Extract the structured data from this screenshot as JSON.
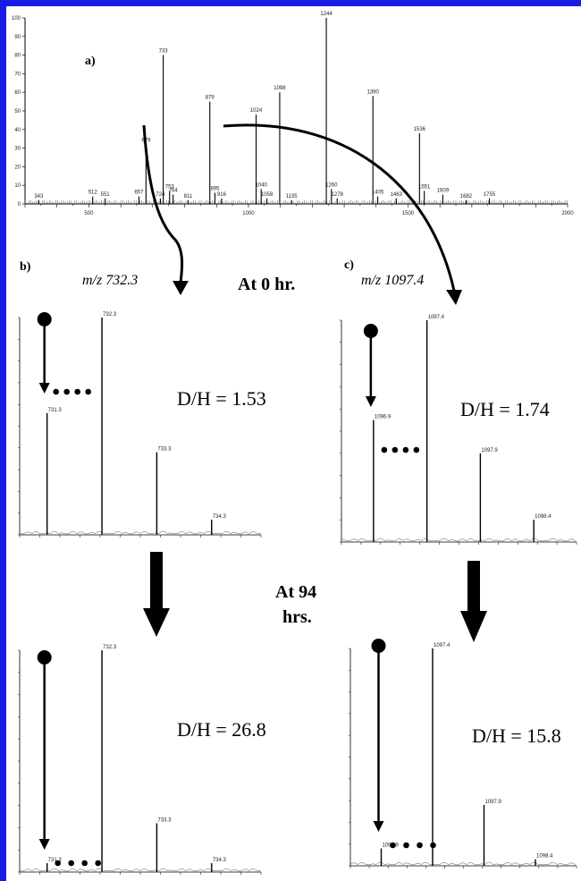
{
  "colors": {
    "frame": "#1a1ae6",
    "ink": "#000000"
  },
  "annotations": {
    "label_a": "a)",
    "label_b": "b)",
    "label_c": "c)",
    "mz_b": "m/z 732.3",
    "mz_c": "m/z 1097.4",
    "time_0": "At 0 hr.",
    "time_94_line1": "At 94",
    "time_94_line2": "hrs."
  },
  "chart_data": [
    {
      "id": "a",
      "type": "bar",
      "xlim": [
        300,
        2000
      ],
      "ylim": [
        0,
        100
      ],
      "xticks": [
        500,
        1000,
        1500,
        2000
      ],
      "yticks": [
        0,
        10,
        20,
        30,
        40,
        50,
        60,
        70,
        80,
        90,
        100
      ],
      "peaks": [
        {
          "x": 343,
          "y": 2,
          "label": "343"
        },
        {
          "x": 512,
          "y": 4,
          "label": "512"
        },
        {
          "x": 551,
          "y": 3,
          "label": "551"
        },
        {
          "x": 657,
          "y": 4,
          "label": "657"
        },
        {
          "x": 679,
          "y": 32,
          "label": "679"
        },
        {
          "x": 724,
          "y": 3,
          "label": "724"
        },
        {
          "x": 733,
          "y": 80,
          "label": "733"
        },
        {
          "x": 753,
          "y": 7,
          "label": "753"
        },
        {
          "x": 764,
          "y": 5,
          "label": "764"
        },
        {
          "x": 811,
          "y": 2,
          "label": "811"
        },
        {
          "x": 879,
          "y": 55,
          "label": "879"
        },
        {
          "x": 895,
          "y": 6,
          "label": "895"
        },
        {
          "x": 916,
          "y": 3,
          "label": "916"
        },
        {
          "x": 1024,
          "y": 48,
          "label": "1024"
        },
        {
          "x": 1040,
          "y": 8,
          "label": "1040"
        },
        {
          "x": 1058,
          "y": 3,
          "label": "1058"
        },
        {
          "x": 1098,
          "y": 60,
          "label": "1098"
        },
        {
          "x": 1135,
          "y": 2,
          "label": "1135"
        },
        {
          "x": 1244,
          "y": 100,
          "label": "1244"
        },
        {
          "x": 1260,
          "y": 8,
          "label": "1260"
        },
        {
          "x": 1278,
          "y": 3,
          "label": "1278"
        },
        {
          "x": 1390,
          "y": 58,
          "label": "1390"
        },
        {
          "x": 1405,
          "y": 4,
          "label": "1405"
        },
        {
          "x": 1463,
          "y": 3,
          "label": "1463"
        },
        {
          "x": 1536,
          "y": 38,
          "label": "1536"
        },
        {
          "x": 1551,
          "y": 7,
          "label": "1551"
        },
        {
          "x": 1609,
          "y": 5,
          "label": "1609"
        },
        {
          "x": 1682,
          "y": 2,
          "label": "1682"
        },
        {
          "x": 1755,
          "y": 3,
          "label": "1755"
        }
      ]
    },
    {
      "id": "b0",
      "type": "bar",
      "annotation": "D/H = 1.53",
      "ylim": [
        0,
        100
      ],
      "peaks": [
        {
          "x": 731.3,
          "y": 56,
          "label": "731.3"
        },
        {
          "x": 732.3,
          "y": 100,
          "label": "732.3"
        },
        {
          "x": 733.3,
          "y": 38,
          "label": "733.3"
        },
        {
          "x": 734.3,
          "y": 7,
          "label": "734.3"
        }
      ]
    },
    {
      "id": "c0",
      "type": "bar",
      "annotation": "D/H = 1.74",
      "ylim": [
        0,
        100
      ],
      "peaks": [
        {
          "x": 1096.9,
          "y": 55,
          "label": "1096.9"
        },
        {
          "x": 1097.4,
          "y": 100,
          "label": "1097.4"
        },
        {
          "x": 1097.9,
          "y": 40,
          "label": "1097.9"
        },
        {
          "x": 1098.4,
          "y": 10,
          "label": "1098.4"
        }
      ]
    },
    {
      "id": "b94",
      "type": "bar",
      "annotation": "D/H = 26.8",
      "ylim": [
        0,
        100
      ],
      "peaks": [
        {
          "x": 731.3,
          "y": 4,
          "label": "731.3"
        },
        {
          "x": 732.3,
          "y": 100,
          "label": "732.3"
        },
        {
          "x": 733.3,
          "y": 22,
          "label": "733.3"
        },
        {
          "x": 734.3,
          "y": 4,
          "label": "734.3"
        }
      ]
    },
    {
      "id": "c94",
      "type": "bar",
      "annotation": "D/H = 15.8",
      "ylim": [
        0,
        100
      ],
      "peaks": [
        {
          "x": 1096.9,
          "y": 8,
          "label": "1096.9"
        },
        {
          "x": 1097.4,
          "y": 100,
          "label": "1097.4"
        },
        {
          "x": 1097.9,
          "y": 28,
          "label": "1097.9"
        },
        {
          "x": 1098.4,
          "y": 3,
          "label": "1098.4"
        }
      ]
    }
  ]
}
